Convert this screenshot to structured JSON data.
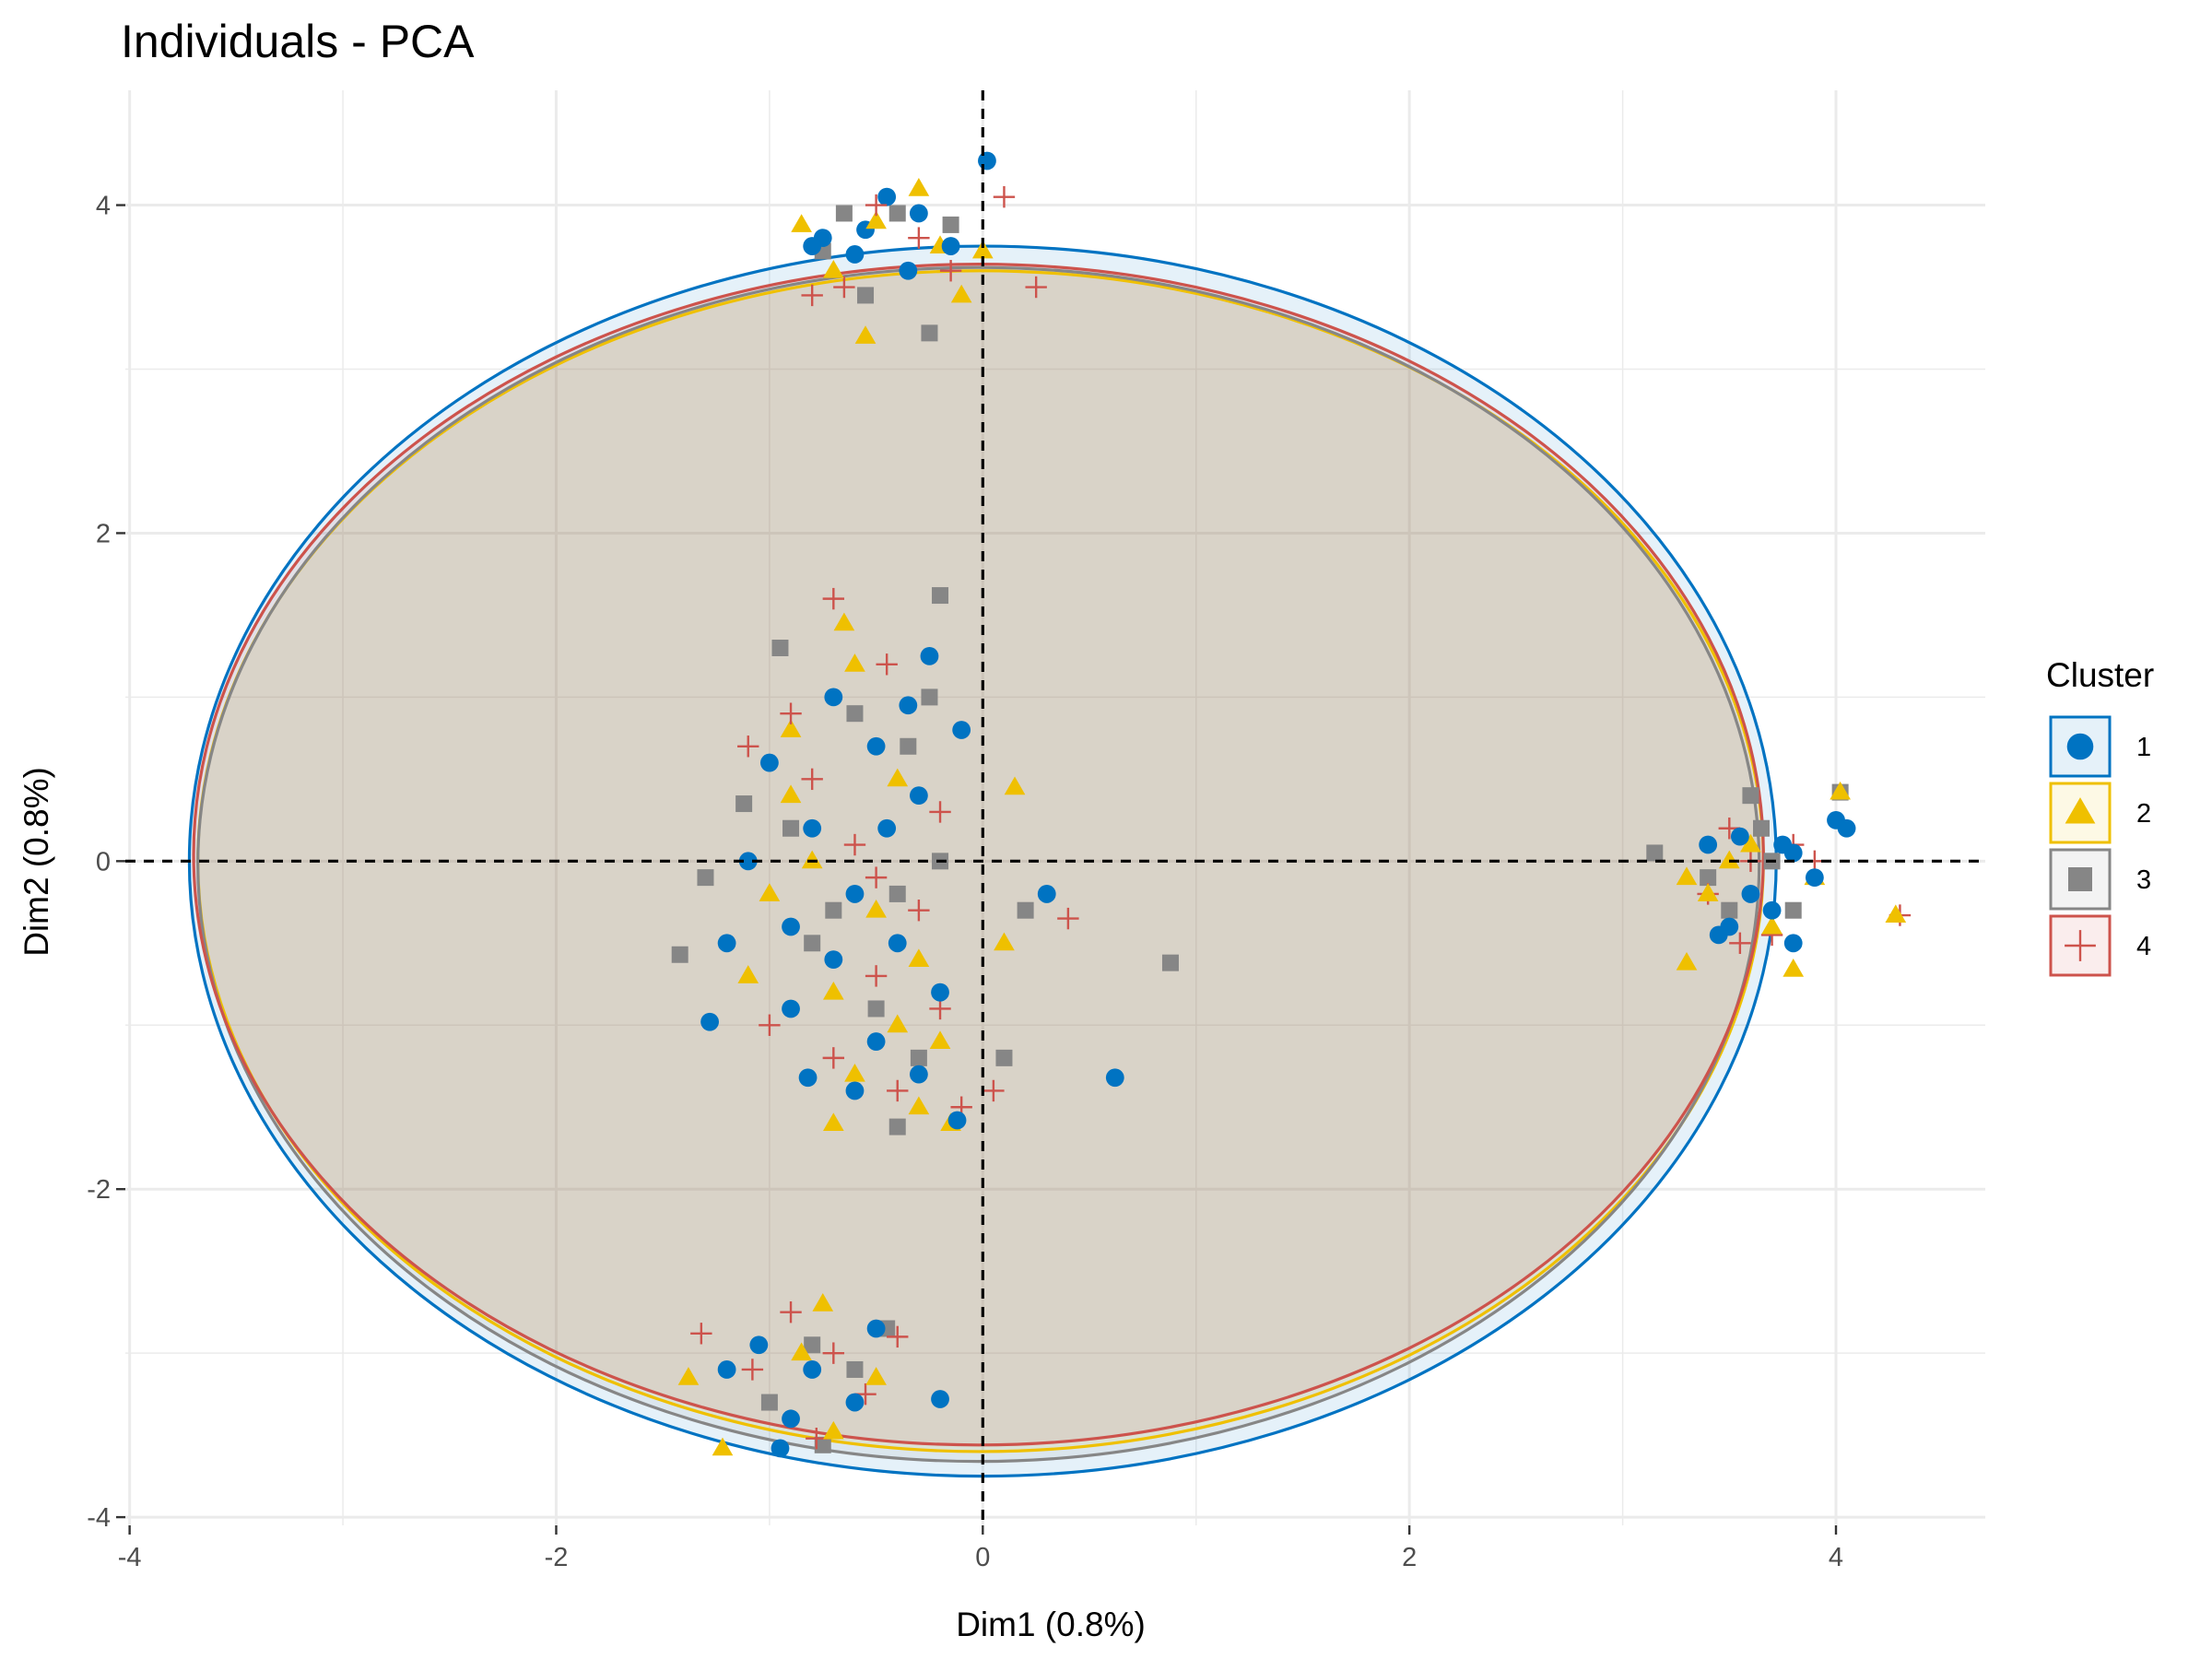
{
  "chart_data": {
    "type": "scatter",
    "title": "Individuals - PCA",
    "xlabel": "Dim1 (0.8%)",
    "ylabel": "Dim2 (0.8%)",
    "xlim": [
      -4.02,
      4.7
    ],
    "ylim": [
      -4.05,
      4.7
    ],
    "x_ticks": [
      -4,
      -2,
      0,
      2,
      4
    ],
    "x_tick_labels": [
      "-4",
      "-2",
      "0",
      "2",
      "4"
    ],
    "y_ticks": [
      -4,
      -2,
      0,
      2,
      4
    ],
    "y_tick_labels": [
      "-4",
      "-2",
      "0",
      "2",
      "4"
    ],
    "grid": true,
    "reference_lines": {
      "x": 0,
      "y": 0,
      "style": "dashed"
    },
    "legend": {
      "title": "Cluster",
      "position": "right",
      "entries": [
        {
          "label": "1",
          "shape": "circle",
          "color": "#0073C2"
        },
        {
          "label": "2",
          "shape": "triangle",
          "color": "#EFC000"
        },
        {
          "label": "3",
          "shape": "square",
          "color": "#868686"
        },
        {
          "label": "4",
          "shape": "cross",
          "color": "#CD534C"
        }
      ]
    },
    "ellipses": [
      {
        "cluster": "1",
        "cx": 0.0,
        "cy": 0.0,
        "rx": 3.72,
        "ry": 3.75,
        "stroke": "#0073C2",
        "fill": "#0073C2"
      },
      {
        "cluster": "2",
        "cx": -0.01,
        "cy": 0.0,
        "rx": 3.67,
        "ry": 3.6,
        "stroke": "#EFC000",
        "fill": "#EFC000"
      },
      {
        "cluster": "3",
        "cx": -0.02,
        "cy": -0.02,
        "rx": 3.66,
        "ry": 3.64,
        "stroke": "#868686",
        "fill": "#868686"
      },
      {
        "cluster": "4",
        "cx": -0.02,
        "cy": 0.04,
        "rx": 3.68,
        "ry": 3.6,
        "stroke": "#CD534C",
        "fill": "#CD534C"
      }
    ],
    "series": [
      {
        "name": "1",
        "points": [
          [
            -0.55,
            3.85
          ],
          [
            -0.3,
            3.95
          ],
          [
            -0.75,
            3.8
          ],
          [
            -0.45,
            4.05
          ],
          [
            0.02,
            4.27
          ],
          [
            -0.6,
            3.7
          ],
          [
            -0.15,
            3.75
          ],
          [
            -0.35,
            3.6
          ],
          [
            -0.8,
            3.75
          ],
          [
            -1.0,
            0.6
          ],
          [
            -0.7,
            1.0
          ],
          [
            -0.5,
            0.7
          ],
          [
            -0.3,
            0.4
          ],
          [
            -0.8,
            0.2
          ],
          [
            -1.1,
            0.0
          ],
          [
            -0.6,
            -0.2
          ],
          [
            -0.4,
            -0.5
          ],
          [
            -0.2,
            -0.8
          ],
          [
            -0.7,
            -0.6
          ],
          [
            -0.9,
            -0.4
          ],
          [
            -0.5,
            -1.1
          ],
          [
            -0.3,
            -1.3
          ],
          [
            -0.6,
            -1.4
          ],
          [
            -0.1,
            0.8
          ],
          [
            -0.25,
            1.25
          ],
          [
            -0.35,
            0.95
          ],
          [
            -1.2,
            -0.5
          ],
          [
            -1.28,
            -0.98
          ],
          [
            -0.82,
            -1.32
          ],
          [
            -0.12,
            -1.58
          ],
          [
            0.3,
            -0.2
          ],
          [
            0.62,
            -1.32
          ],
          [
            -0.9,
            -0.9
          ],
          [
            -0.45,
            0.2
          ],
          [
            -1.05,
            -2.95
          ],
          [
            -0.8,
            -3.1
          ],
          [
            -0.6,
            -3.3
          ],
          [
            -0.9,
            -3.4
          ],
          [
            -0.5,
            -2.85
          ],
          [
            -0.2,
            -3.28
          ],
          [
            -0.95,
            -3.58
          ],
          [
            -1.2,
            -3.1
          ],
          [
            3.4,
            0.1
          ],
          [
            3.6,
            -0.2
          ],
          [
            3.8,
            0.05
          ],
          [
            3.5,
            -0.4
          ],
          [
            3.7,
            -0.3
          ],
          [
            4.0,
            0.25
          ],
          [
            4.05,
            0.2
          ],
          [
            3.9,
            -0.1
          ],
          [
            3.8,
            -0.5
          ],
          [
            3.45,
            -0.45
          ],
          [
            3.75,
            0.1
          ],
          [
            3.55,
            0.15
          ]
        ]
      },
      {
        "name": "2",
        "points": [
          [
            -0.85,
            3.88
          ],
          [
            -0.5,
            3.9
          ],
          [
            -0.2,
            3.75
          ],
          [
            -0.1,
            3.45
          ],
          [
            -0.55,
            3.2
          ],
          [
            -0.3,
            4.1
          ],
          [
            -0.7,
            3.6
          ],
          [
            0.0,
            3.72
          ],
          [
            -0.9,
            0.8
          ],
          [
            -0.6,
            1.2
          ],
          [
            -0.4,
            0.5
          ],
          [
            -0.8,
            0.0
          ],
          [
            -0.5,
            -0.3
          ],
          [
            -0.3,
            -0.6
          ],
          [
            -1.0,
            -0.2
          ],
          [
            -0.7,
            -0.8
          ],
          [
            -0.4,
            -1.0
          ],
          [
            -0.6,
            -1.3
          ],
          [
            -0.2,
            -1.1
          ],
          [
            -0.9,
            0.4
          ],
          [
            -0.65,
            1.45
          ],
          [
            -0.3,
            -1.5
          ],
          [
            -0.7,
            -1.6
          ],
          [
            -0.15,
            -1.6
          ],
          [
            0.15,
            0.45
          ],
          [
            0.1,
            -0.5
          ],
          [
            -1.1,
            -0.7
          ],
          [
            -0.75,
            -2.7
          ],
          [
            -0.85,
            -3.0
          ],
          [
            -0.5,
            -3.15
          ],
          [
            -0.7,
            -3.48
          ],
          [
            -1.22,
            -3.58
          ],
          [
            -1.38,
            -3.15
          ],
          [
            3.3,
            -0.1
          ],
          [
            3.3,
            -0.62
          ],
          [
            3.6,
            0.1
          ],
          [
            3.9,
            -0.1
          ],
          [
            4.02,
            0.42
          ],
          [
            4.28,
            -0.33
          ],
          [
            3.7,
            -0.4
          ],
          [
            3.8,
            -0.66
          ],
          [
            3.5,
            0.0
          ],
          [
            3.4,
            -0.2
          ]
        ]
      },
      {
        "name": "3",
        "points": [
          [
            -0.75,
            3.72
          ],
          [
            -0.4,
            3.95
          ],
          [
            -0.25,
            3.22
          ],
          [
            -0.55,
            3.45
          ],
          [
            -0.15,
            3.88
          ],
          [
            -0.65,
            3.95
          ],
          [
            -0.95,
            1.3
          ],
          [
            -0.6,
            0.9
          ],
          [
            -0.35,
            0.7
          ],
          [
            -0.2,
            1.62
          ],
          [
            -0.25,
            1.0
          ],
          [
            -0.9,
            0.2
          ],
          [
            -0.7,
            -0.3
          ],
          [
            -0.4,
            -0.2
          ],
          [
            -0.5,
            -0.9
          ],
          [
            -0.3,
            -1.2
          ],
          [
            -0.8,
            -0.5
          ],
          [
            -1.12,
            0.35
          ],
          [
            -1.42,
            -0.57
          ],
          [
            0.2,
            -0.3
          ],
          [
            0.88,
            -0.62
          ],
          [
            0.1,
            -1.2
          ],
          [
            -0.4,
            -1.62
          ],
          [
            -0.2,
            0.0
          ],
          [
            -1.3,
            -0.1
          ],
          [
            -0.8,
            -2.95
          ],
          [
            -0.6,
            -3.1
          ],
          [
            -1.0,
            -3.3
          ],
          [
            -0.75,
            -3.56
          ],
          [
            -0.45,
            -2.85
          ],
          [
            3.15,
            0.05
          ],
          [
            3.4,
            -0.1
          ],
          [
            3.65,
            0.2
          ],
          [
            3.6,
            0.4
          ],
          [
            3.8,
            -0.3
          ],
          [
            4.02,
            0.42
          ],
          [
            3.5,
            -0.3
          ],
          [
            3.7,
            0.0
          ]
        ]
      },
      {
        "name": "4",
        "points": [
          [
            -0.65,
            3.5
          ],
          [
            -0.3,
            3.8
          ],
          [
            0.1,
            4.05
          ],
          [
            0.25,
            3.5
          ],
          [
            -0.5,
            4.0
          ],
          [
            -0.15,
            3.6
          ],
          [
            -0.8,
            3.45
          ],
          [
            -0.7,
            1.6
          ],
          [
            -0.45,
            1.2
          ],
          [
            -0.8,
            0.5
          ],
          [
            -0.6,
            0.1
          ],
          [
            -0.3,
            -0.3
          ],
          [
            -0.5,
            -0.7
          ],
          [
            -0.2,
            -0.9
          ],
          [
            -0.7,
            -1.2
          ],
          [
            -0.4,
            -1.4
          ],
          [
            -0.9,
            0.9
          ],
          [
            -1.1,
            0.7
          ],
          [
            0.4,
            -0.35
          ],
          [
            0.05,
            -1.4
          ],
          [
            -0.1,
            -1.5
          ],
          [
            -0.5,
            -0.1
          ],
          [
            -1.0,
            -1.0
          ],
          [
            -0.2,
            0.3
          ],
          [
            -0.9,
            -2.75
          ],
          [
            -0.7,
            -3.0
          ],
          [
            -0.55,
            -3.25
          ],
          [
            -1.08,
            -3.1
          ],
          [
            -0.78,
            -3.52
          ],
          [
            -0.4,
            -2.9
          ],
          [
            -1.32,
            -2.88
          ],
          [
            3.4,
            -0.2
          ],
          [
            3.6,
            0.0
          ],
          [
            3.7,
            -0.45
          ],
          [
            3.8,
            0.1
          ],
          [
            4.3,
            -0.33
          ],
          [
            3.55,
            -0.5
          ],
          [
            3.9,
            0.0
          ],
          [
            3.5,
            0.2
          ]
        ]
      }
    ]
  }
}
